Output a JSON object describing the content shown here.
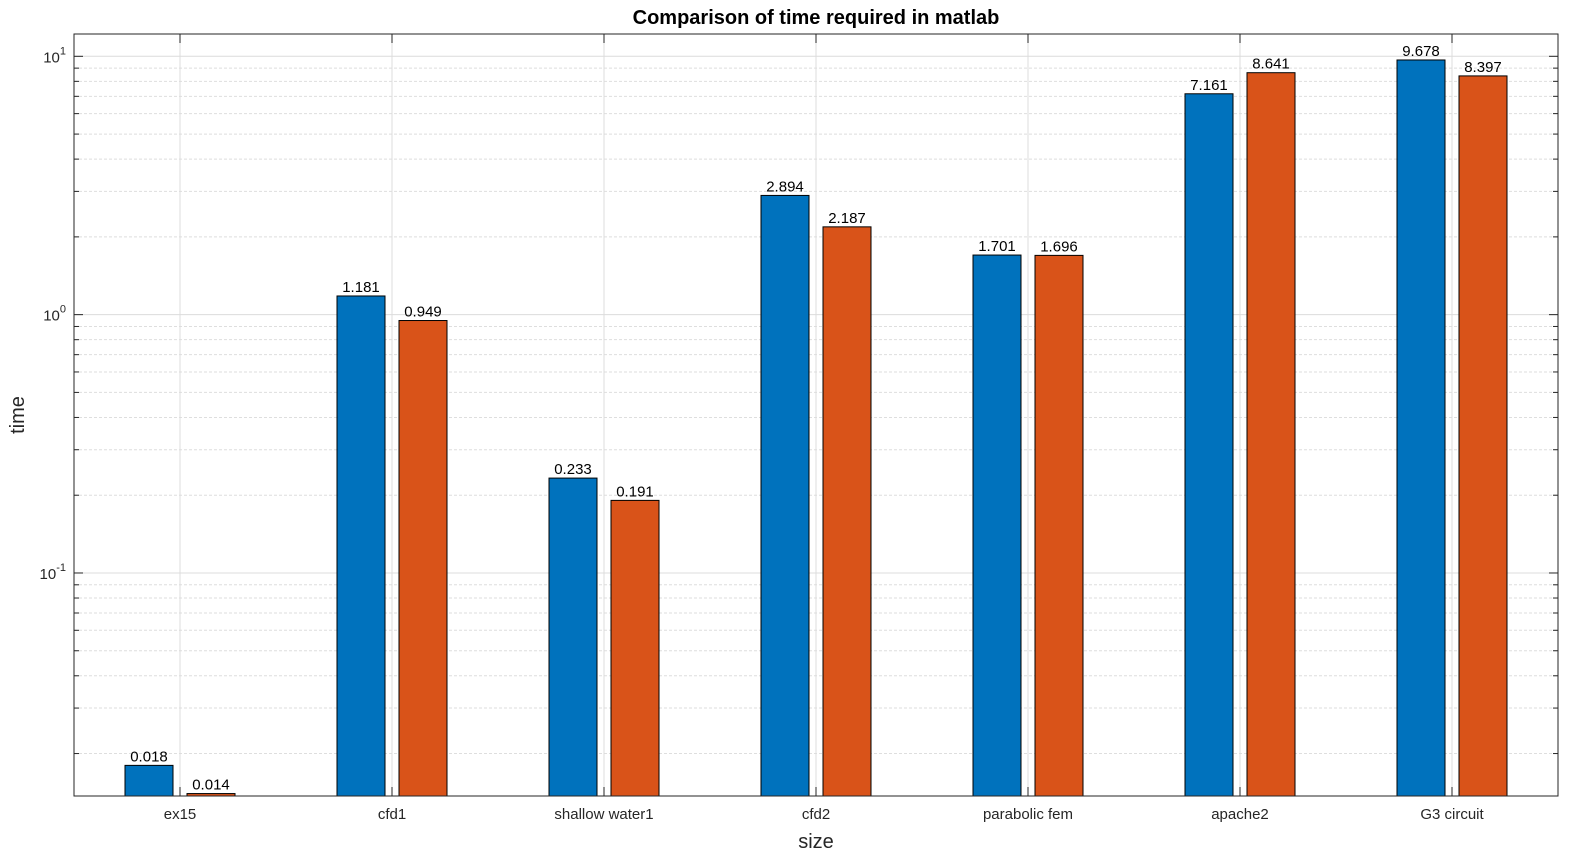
{
  "chart_data": {
    "type": "bar",
    "title": "Comparison of time required in matlab",
    "xlabel": "size",
    "ylabel": "time",
    "yscale": "log",
    "ylim": [
      0.0137,
      12.2
    ],
    "grid": true,
    "minor_grid": true,
    "categories": [
      "ex15",
      "cfd1",
      "shallow water1",
      "cfd2",
      "parabolic fem",
      "apache2",
      "G3 circuit"
    ],
    "series": [
      {
        "values": [
          0.018,
          1.181,
          0.233,
          2.894,
          1.701,
          7.161,
          9.678
        ],
        "color": "#0072BD"
      },
      {
        "values": [
          0.014,
          0.949,
          0.191,
          2.187,
          1.696,
          8.641,
          8.397
        ],
        "color": "#D95319"
      }
    ],
    "data_labels": [
      [
        "0.018",
        "1.181",
        "0.233",
        "2.894",
        "1.701",
        "7.161",
        "9.678"
      ],
      [
        "0.014",
        "0.949",
        "0.191",
        "2.187",
        "1.696",
        "8.641",
        "8.397"
      ]
    ],
    "yticks": [
      {
        "value": 0.1,
        "base": "10",
        "exp": "-1"
      },
      {
        "value": 1,
        "base": "10",
        "exp": "0"
      },
      {
        "value": 10,
        "base": "10",
        "exp": "1"
      }
    ]
  }
}
